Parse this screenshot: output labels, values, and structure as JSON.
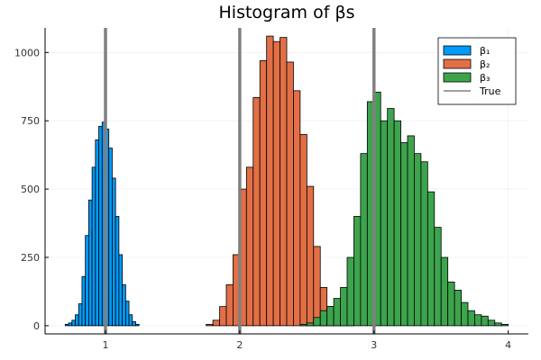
{
  "chart_data": {
    "type": "bar",
    "title": "Histogram of βs",
    "xlabel": "",
    "ylabel": "",
    "xlim": [
      0.55,
      4.15
    ],
    "ylim": [
      -30,
      1090
    ],
    "grid": true,
    "legend_position": "top-right",
    "xticks": [
      1,
      2,
      3,
      4
    ],
    "yticks": [
      0,
      250,
      500,
      750,
      1000
    ],
    "bin_width": 0.05,
    "true_values": [
      1,
      2,
      3
    ],
    "true_label": "True",
    "true_color": "#808080",
    "series": [
      {
        "name": "β₁",
        "color": "#009af9",
        "bin_width": 0.025,
        "x0": 0.7,
        "counts": [
          5,
          10,
          20,
          40,
          80,
          180,
          330,
          460,
          580,
          680,
          730,
          745,
          720,
          650,
          540,
          400,
          260,
          150,
          90,
          40,
          15,
          5
        ]
      },
      {
        "name": "β₂",
        "color": "#e26f46",
        "bin_width": 0.05,
        "x0": 1.75,
        "counts": [
          5,
          20,
          70,
          150,
          260,
          500,
          580,
          835,
          970,
          1060,
          1040,
          1055,
          965,
          860,
          700,
          510,
          290,
          140,
          70,
          30,
          10,
          5
        ]
      },
      {
        "name": "β₃",
        "color": "#3da44d",
        "bin_width": 0.05,
        "x0": 2.45,
        "counts": [
          5,
          10,
          30,
          55,
          70,
          100,
          140,
          250,
          400,
          630,
          820,
          855,
          750,
          795,
          750,
          670,
          695,
          630,
          600,
          490,
          360,
          250,
          160,
          130,
          85,
          55,
          40,
          35,
          20,
          10,
          5
        ]
      }
    ]
  }
}
